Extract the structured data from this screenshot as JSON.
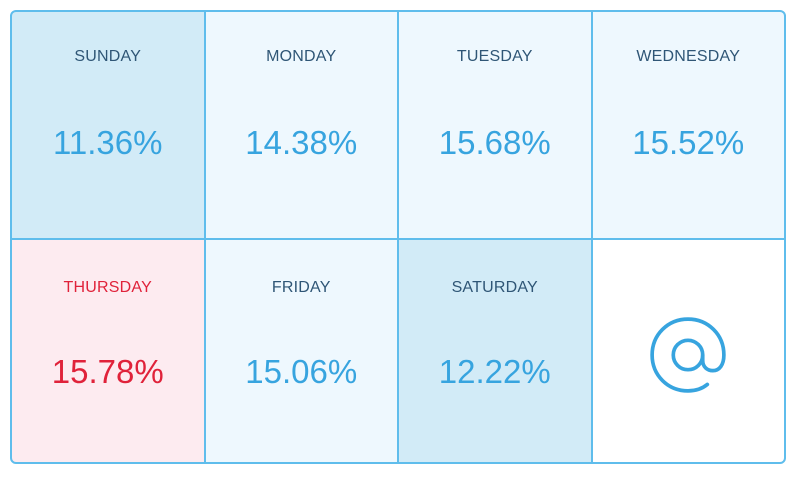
{
  "colors": {
    "border": "#5fbdec",
    "cell_default": "#eef8fe",
    "cell_low": "#d2ebf7",
    "cell_high": "#fdebf0",
    "value_blue": "#37a4df",
    "label_navy": "#2f5676",
    "highlight_red": "#e0223a"
  },
  "days": [
    {
      "label": "SUNDAY",
      "value": "11.36%",
      "state": "low"
    },
    {
      "label": "MONDAY",
      "value": "14.38%",
      "state": "normal"
    },
    {
      "label": "TUESDAY",
      "value": "15.68%",
      "state": "normal"
    },
    {
      "label": "WEDNESDAY",
      "value": "15.52%",
      "state": "normal"
    },
    {
      "label": "THURSDAY",
      "value": "15.78%",
      "state": "high"
    },
    {
      "label": "FRIDAY",
      "value": "15.06%",
      "state": "normal"
    },
    {
      "label": "SATURDAY",
      "value": "12.22%",
      "state": "low"
    }
  ],
  "icon": "at-sign-icon"
}
